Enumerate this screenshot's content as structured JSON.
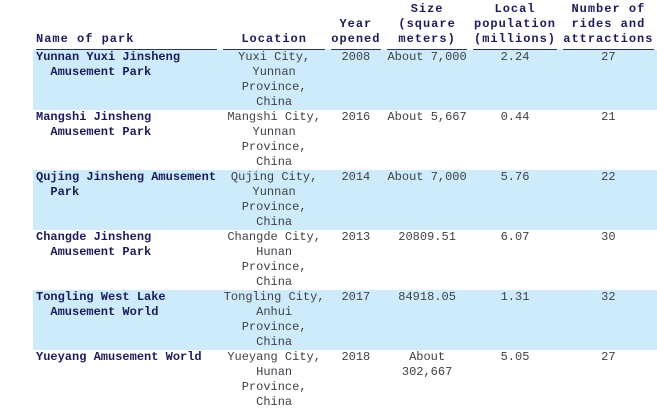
{
  "chart_data": {
    "type": "table",
    "columns": [
      {
        "id": "name",
        "header_lines": [
          "Name of park"
        ]
      },
      {
        "id": "location",
        "header_lines": [
          "Location"
        ]
      },
      {
        "id": "year",
        "header_lines": [
          "Year",
          "opened"
        ]
      },
      {
        "id": "size",
        "header_lines": [
          "Size",
          "(square",
          "meters)"
        ]
      },
      {
        "id": "population",
        "header_lines": [
          "Local",
          "population",
          "(millions)"
        ]
      },
      {
        "id": "rides",
        "header_lines": [
          "Number of",
          "rides and",
          "attractions"
        ]
      }
    ],
    "rows": [
      {
        "name": [
          "Yunnan Yuxi Jinsheng",
          "  Amusement Park"
        ],
        "location": [
          "Yuxi City,",
          "Yunnan",
          "Province,",
          "China"
        ],
        "year": "2008",
        "size": [
          "About 7,000"
        ],
        "population": "2.24",
        "rides": "27",
        "highlighted": true
      },
      {
        "name": [
          "Mangshi Jinsheng",
          "  Amusement Park"
        ],
        "location": [
          "Mangshi City,",
          "Yunnan",
          "Province,",
          "China"
        ],
        "year": "2016",
        "size": [
          "About 5,667"
        ],
        "population": "0.44",
        "rides": "21",
        "highlighted": false
      },
      {
        "name": [
          "Qujing Jinsheng Amusement",
          "  Park"
        ],
        "location": [
          "Qujing City,",
          "Yunnan",
          "Province,",
          "China"
        ],
        "year": "2014",
        "size": [
          "About 7,000"
        ],
        "population": "5.76",
        "rides": "22",
        "highlighted": true
      },
      {
        "name": [
          "Changde Jinsheng",
          "  Amusement Park"
        ],
        "location": [
          "Changde City,",
          "Hunan",
          "Province,",
          "China"
        ],
        "year": "2013",
        "size": [
          "20809.51"
        ],
        "population": "6.07",
        "rides": "30",
        "highlighted": false
      },
      {
        "name": [
          "Tongling West Lake",
          "  Amusement World"
        ],
        "location": [
          "Tongling City,",
          "Anhui",
          "Province,",
          "China"
        ],
        "year": "2017",
        "size": [
          "84918.05"
        ],
        "population": "1.31",
        "rides": "32",
        "highlighted": true
      },
      {
        "name": [
          "Yueyang Amusement World"
        ],
        "location": [
          "Yueyang City,",
          "Hunan",
          "Province,",
          "China"
        ],
        "year": "2018",
        "size": [
          "About",
          "302,667"
        ],
        "population": "5.05",
        "rides": "27",
        "highlighted": false
      }
    ],
    "style": {
      "stripe_color": "#CDEBFB",
      "header_text_color": "#1B1B5A",
      "body_text_color": "#3F3F46",
      "rule_color": "#30305E",
      "background": "#ffffff"
    }
  }
}
